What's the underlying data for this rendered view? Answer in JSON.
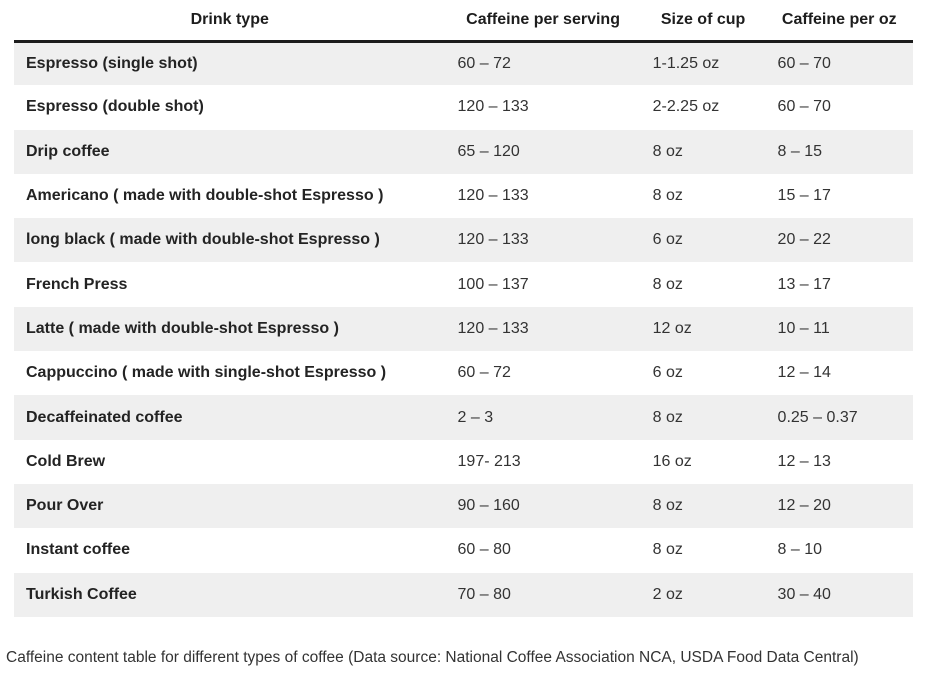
{
  "table": {
    "columns": [
      "Drink type",
      "Caffeine per serving",
      "Size of cup",
      "Caffeine per oz"
    ],
    "rows": [
      [
        "Espresso (single shot)",
        "60 – 72",
        "1-1.25 oz",
        "60 – 70"
      ],
      [
        "Espresso (double shot)",
        "120 – 133",
        "2-2.25 oz",
        "60 – 70"
      ],
      [
        "Drip coffee",
        "65 – 120",
        "8 oz",
        "8 – 15"
      ],
      [
        "Americano ( made with double-shot Espresso )",
        "120 – 133",
        "8 oz",
        "15 – 17"
      ],
      [
        "long black  ( made with double-shot Espresso )",
        "120 – 133",
        "6 oz",
        "20 – 22"
      ],
      [
        "French Press",
        "100 – 137",
        "8 oz",
        "13 – 17"
      ],
      [
        "Latte  ( made with double-shot Espresso )",
        "120 – 133",
        "12 oz",
        "10 – 11"
      ],
      [
        "Cappuccino ( made with single-shot Espresso )",
        "60 – 72",
        "6 oz",
        "12 – 14"
      ],
      [
        "Decaffeinated coffee",
        "2 – 3",
        "8 oz",
        "0.25 – 0.37"
      ],
      [
        "Cold Brew",
        "197- 213",
        "16 oz",
        "12 – 13"
      ],
      [
        "Pour Over",
        "90 – 160",
        "8 oz",
        "12 – 20"
      ],
      [
        "Instant coffee",
        "60 – 80",
        "8 oz",
        "8 – 10"
      ],
      [
        "Turkish Coffee",
        "70 – 80",
        "2 oz",
        "30 – 40"
      ]
    ]
  },
  "caption": "Caffeine content table for different types of coffee (Data source: National Coffee Association NCA, USDA Food Data Central)",
  "colors": {
    "header_border": "#1c1c1c",
    "row_stripe": "#efefef",
    "row_alt": "#ffffff",
    "text": "#333333"
  },
  "chart_data": {
    "type": "table",
    "title": "",
    "caption": "Caffeine content table for different types of coffee (Data source: National Coffee Association NCA, USDA Food Data Central)",
    "columns": [
      "Drink type",
      "Caffeine per serving",
      "Size of cup",
      "Caffeine per oz"
    ],
    "rows": [
      {
        "drink": "Espresso (single shot)",
        "caffeine_per_serving": "60 – 72",
        "size_of_cup": "1-1.25 oz",
        "caffeine_per_oz": "60 – 70"
      },
      {
        "drink": "Espresso (double shot)",
        "caffeine_per_serving": "120 – 133",
        "size_of_cup": "2-2.25 oz",
        "caffeine_per_oz": "60 – 70"
      },
      {
        "drink": "Drip coffee",
        "caffeine_per_serving": "65 – 120",
        "size_of_cup": "8 oz",
        "caffeine_per_oz": "8 – 15"
      },
      {
        "drink": "Americano ( made with double-shot Espresso )",
        "caffeine_per_serving": "120 – 133",
        "size_of_cup": "8 oz",
        "caffeine_per_oz": "15 – 17"
      },
      {
        "drink": "long black  ( made with double-shot Espresso )",
        "caffeine_per_serving": "120 – 133",
        "size_of_cup": "6 oz",
        "caffeine_per_oz": "20 – 22"
      },
      {
        "drink": "French Press",
        "caffeine_per_serving": "100 – 137",
        "size_of_cup": "8 oz",
        "caffeine_per_oz": "13 – 17"
      },
      {
        "drink": "Latte  ( made with double-shot Espresso )",
        "caffeine_per_serving": "120 – 133",
        "size_of_cup": "12 oz",
        "caffeine_per_oz": "10 – 11"
      },
      {
        "drink": "Cappuccino ( made with single-shot Espresso )",
        "caffeine_per_serving": "60 – 72",
        "size_of_cup": "6 oz",
        "caffeine_per_oz": "12 – 14"
      },
      {
        "drink": "Decaffeinated coffee",
        "caffeine_per_serving": "2 – 3",
        "size_of_cup": "8 oz",
        "caffeine_per_oz": "0.25 – 0.37"
      },
      {
        "drink": "Cold Brew",
        "caffeine_per_serving": "197- 213",
        "size_of_cup": "16 oz",
        "caffeine_per_oz": "12 – 13"
      },
      {
        "drink": "Pour Over",
        "caffeine_per_serving": "90 – 160",
        "size_of_cup": "8 oz",
        "caffeine_per_oz": "12 – 20"
      },
      {
        "drink": "Instant coffee",
        "caffeine_per_serving": "60 – 80",
        "size_of_cup": "8 oz",
        "caffeine_per_oz": "8 – 10"
      },
      {
        "drink": "Turkish Coffee",
        "caffeine_per_serving": "70 – 80",
        "size_of_cup": "2 oz",
        "caffeine_per_oz": "30 – 40"
      }
    ]
  }
}
